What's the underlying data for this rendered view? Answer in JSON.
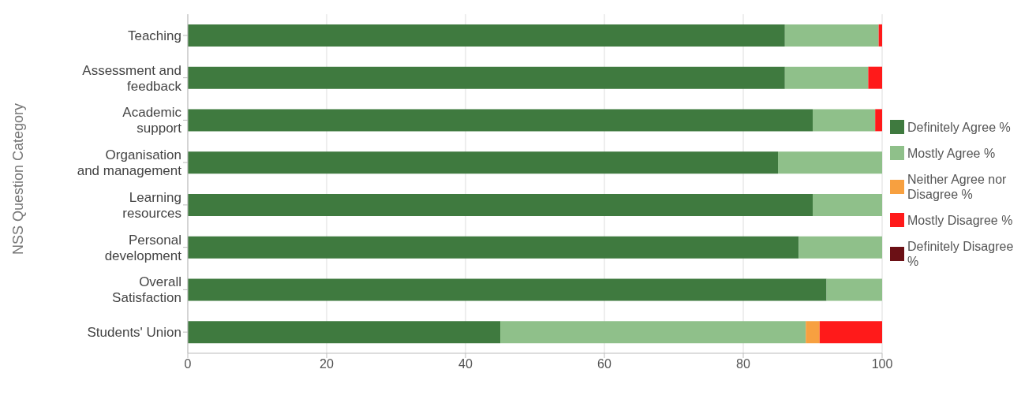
{
  "chart_data": {
    "type": "bar",
    "orientation": "horizontal",
    "stacked": true,
    "ylabel": "NSS Question Category",
    "categories": [
      "Teaching",
      "Assessment and feedback",
      "Academic support",
      "Organisation and management",
      "Learning resources",
      "Personal development",
      "Overall Satisfaction",
      "Students' Union"
    ],
    "series": [
      {
        "name": "Definitely Agree %",
        "color": "#3f7a3f",
        "values": [
          86,
          86,
          90,
          85,
          90,
          88,
          92,
          45
        ]
      },
      {
        "name": "Mostly Agree %",
        "color": "#8fc08a",
        "values": [
          13.5,
          12,
          9,
          15,
          10,
          12,
          8,
          44
        ]
      },
      {
        "name": "Neither Agree nor Disagree %",
        "color": "#f7a040",
        "values": [
          0,
          0,
          0,
          0,
          0,
          0,
          0,
          2
        ]
      },
      {
        "name": "Mostly Disagree %",
        "color": "#ff1a1a",
        "values": [
          0.5,
          2,
          1,
          0,
          0,
          0,
          0,
          9
        ]
      },
      {
        "name": "Definitely Disagree %",
        "color": "#6b1015",
        "values": [
          0,
          0,
          0,
          0,
          0,
          0,
          0,
          0
        ]
      }
    ],
    "xlim": [
      0,
      100
    ],
    "xticks": [
      0,
      20,
      40,
      60,
      80,
      100
    ],
    "grid": "x",
    "legend": "right"
  }
}
